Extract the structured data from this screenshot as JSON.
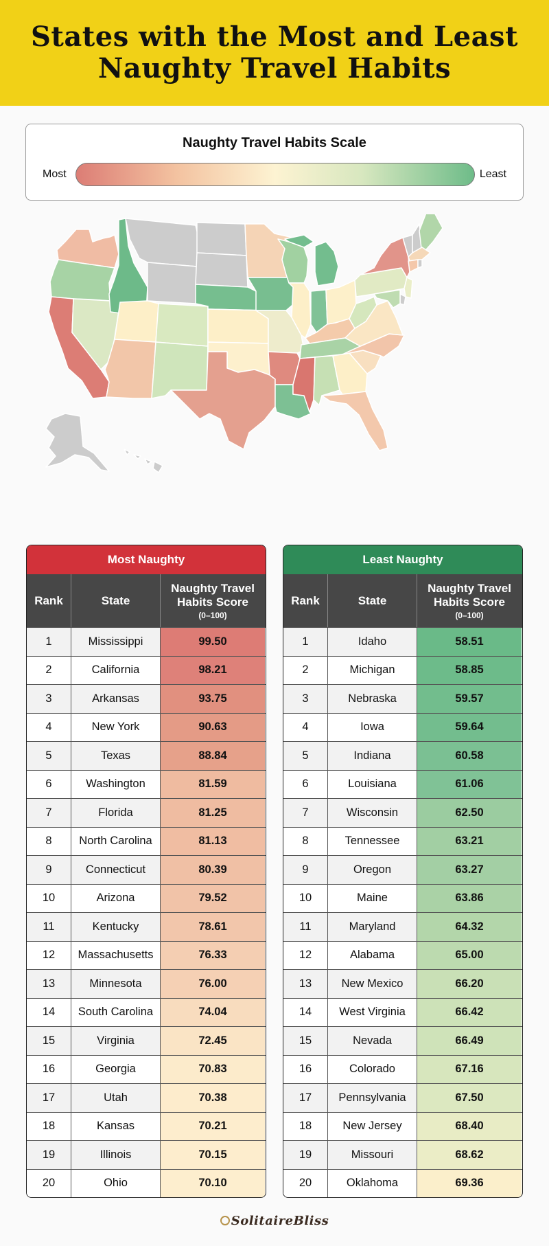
{
  "header": {
    "title_line1": "States with the Most and Least",
    "title_line2": "Naughty Travel Habits"
  },
  "scale": {
    "title": "Naughty Travel Habits Scale",
    "most_label": "Most",
    "least_label": "Least",
    "colors": [
      "#dc7d75",
      "#f3c2a0",
      "#fdf3d2",
      "#d7e7bf",
      "#6ebc89"
    ]
  },
  "map": {
    "no_data_color": "#cccccc",
    "states": {
      "WA": "#f0bca4",
      "OR": "#a7d3a5",
      "CA": "#dc7d75",
      "NV": "#dbe8c4",
      "ID": "#6dba89",
      "MT": "#cccccc",
      "WY": "#cccccc",
      "UT": "#fdefc8",
      "AZ": "#f2c6a9",
      "CO": "#d9e9c0",
      "NM": "#cfe5bb",
      "ND": "#cccccc",
      "SD": "#cccccc",
      "NE": "#76be8f",
      "KS": "#fdefc8",
      "OK": "#fdf0cd",
      "TX": "#e4a08f",
      "MN": "#f5d4b6",
      "IA": "#78be90",
      "MO": "#eeeccc",
      "AR": "#df8a7f",
      "LA": "#7dc094",
      "WI": "#a1d1a1",
      "IL": "#fdefc8",
      "MI": "#73bd8e",
      "IN": "#80c297",
      "OH": "#fdf0ca",
      "KY": "#f4cbab",
      "TN": "#a9d3a6",
      "MS": "#d9766f",
      "AL": "#c6e0b4",
      "GA": "#fdefc8",
      "FL": "#f3c8ac",
      "SC": "#f8dfc0",
      "NC": "#f2c5aa",
      "VA": "#fae6c4",
      "WV": "#d5e7bd",
      "PA": "#e1eac4",
      "NY": "#e1948a",
      "ME": "#b1d6a9",
      "VT": "#cccccc",
      "NH": "#cccccc",
      "MA": "#f5d8b8",
      "CT": "#f4c8ab",
      "RI": "#cccccc",
      "NJ": "#eaeec8",
      "DE": "#cccccc",
      "MD": "#bfdcb1",
      "AK": "#cccccc",
      "HI": "#cccccc"
    }
  },
  "tables": {
    "headers": {
      "rank": "Rank",
      "state": "State",
      "score_line1": "Naughty Travel",
      "score_line2": "Habits Score",
      "score_range": "(0–100)"
    },
    "most": {
      "title": "Most Naughty",
      "color": "#d2323a",
      "rows": [
        {
          "rank": "1",
          "state": "Mississippi",
          "score": "99.50",
          "color": "#dd7c75"
        },
        {
          "rank": "2",
          "state": "California",
          "score": "98.21",
          "color": "#de8179"
        },
        {
          "rank": "3",
          "state": "Arkansas",
          "score": "93.75",
          "color": "#e1907f"
        },
        {
          "rank": "4",
          "state": "New York",
          "score": "90.63",
          "color": "#e49b86"
        },
        {
          "rank": "5",
          "state": "Texas",
          "score": "88.84",
          "color": "#e6a18a"
        },
        {
          "rank": "6",
          "state": "Washington",
          "score": "81.59",
          "color": "#efbba0"
        },
        {
          "rank": "7",
          "state": "Florida",
          "score": "81.25",
          "color": "#efbca1"
        },
        {
          "rank": "8",
          "state": "North Carolina",
          "score": "81.13",
          "color": "#f0bda2"
        },
        {
          "rank": "9",
          "state": "Connecticut",
          "score": "80.39",
          "color": "#f0c0a5"
        },
        {
          "rank": "10",
          "state": "Arizona",
          "score": "79.52",
          "color": "#f1c3a8"
        },
        {
          "rank": "11",
          "state": "Kentucky",
          "score": "78.61",
          "color": "#f2c6ab"
        },
        {
          "rank": "12",
          "state": "Massachusetts",
          "score": "76.33",
          "color": "#f4ceb2"
        },
        {
          "rank": "13",
          "state": "Minnesota",
          "score": "76.00",
          "color": "#f5d0b4"
        },
        {
          "rank": "14",
          "state": "South Carolina",
          "score": "74.04",
          "color": "#f8dcbe"
        },
        {
          "rank": "15",
          "state": "Virginia",
          "score": "72.45",
          "color": "#fae4c5"
        },
        {
          "rank": "16",
          "state": "Georgia",
          "score": "70.83",
          "color": "#fcebcb"
        },
        {
          "rank": "17",
          "state": "Utah",
          "score": "70.38",
          "color": "#fdeccc"
        },
        {
          "rank": "18",
          "state": "Kansas",
          "score": "70.21",
          "color": "#fdedcd"
        },
        {
          "rank": "19",
          "state": "Illinois",
          "score": "70.15",
          "color": "#fdedcd"
        },
        {
          "rank": "20",
          "state": "Ohio",
          "score": "70.10",
          "color": "#fdeece"
        }
      ]
    },
    "least": {
      "title": "Least Naughty",
      "color": "#2f8b58",
      "rows": [
        {
          "rank": "1",
          "state": "Idaho",
          "score": "58.51",
          "color": "#6aba88"
        },
        {
          "rank": "2",
          "state": "Michigan",
          "score": "58.85",
          "color": "#6dbb8a"
        },
        {
          "rank": "3",
          "state": "Nebraska",
          "score": "59.57",
          "color": "#72bd8d"
        },
        {
          "rank": "4",
          "state": "Iowa",
          "score": "59.64",
          "color": "#73bd8e"
        },
        {
          "rank": "5",
          "state": "Indiana",
          "score": "60.58",
          "color": "#7bc093"
        },
        {
          "rank": "6",
          "state": "Louisiana",
          "score": "61.06",
          "color": "#80c296"
        },
        {
          "rank": "7",
          "state": "Wisconsin",
          "score": "62.50",
          "color": "#9bcca0"
        },
        {
          "rank": "8",
          "state": "Tennessee",
          "score": "63.21",
          "color": "#a2cfa3"
        },
        {
          "rank": "9",
          "state": "Oregon",
          "score": "63.27",
          "color": "#a3cfa4"
        },
        {
          "rank": "10",
          "state": "Maine",
          "score": "63.86",
          "color": "#aad2a6"
        },
        {
          "rank": "11",
          "state": "Maryland",
          "score": "64.32",
          "color": "#b3d6aa"
        },
        {
          "rank": "12",
          "state": "Alabama",
          "score": "65.00",
          "color": "#bcdaaf"
        },
        {
          "rank": "13",
          "state": "New Mexico",
          "score": "66.20",
          "color": "#c9e0b6"
        },
        {
          "rank": "14",
          "state": "West Virginia",
          "score": "66.42",
          "color": "#cde2b8"
        },
        {
          "rank": "15",
          "state": "Nevada",
          "score": "66.49",
          "color": "#cfe3b9"
        },
        {
          "rank": "16",
          "state": "Colorado",
          "score": "67.16",
          "color": "#d7e6bd"
        },
        {
          "rank": "17",
          "state": "Pennsylvania",
          "score": "67.50",
          "color": "#dce8c0"
        },
        {
          "rank": "18",
          "state": "New Jersey",
          "score": "68.40",
          "color": "#e8ecc5"
        },
        {
          "rank": "19",
          "state": "Missouri",
          "score": "68.62",
          "color": "#ebedc6"
        },
        {
          "rank": "20",
          "state": "Oklahoma",
          "score": "69.36",
          "color": "#fbefcb"
        }
      ]
    }
  },
  "logo": {
    "text": "SolitaireBliss"
  }
}
